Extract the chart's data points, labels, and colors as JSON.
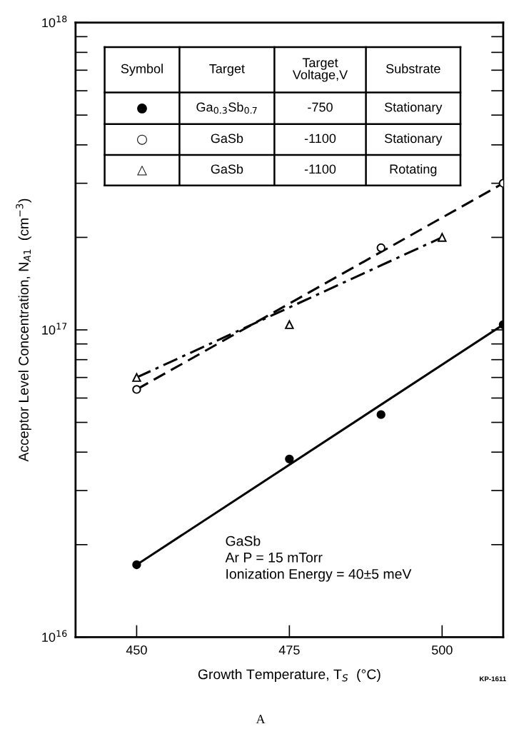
{
  "chart_data": {
    "type": "scatter",
    "xlabel": "Growth Temperature, T$_{S}$  (°C)",
    "ylabel": "Acceptor Level Concentration, N$_{A1}$  (cm$^{−3}$)",
    "log": "y",
    "xlim": [
      440,
      510
    ],
    "xticks": [
      450,
      475,
      500
    ],
    "ylim": [
      1e+16,
      1e+18
    ],
    "yticks": [
      {
        "value": 1e+16,
        "label": "10$^{16}$"
      },
      {
        "value": 1e+17,
        "label": "10$^{17}$"
      },
      {
        "value": 1e+18,
        "label": "10$^{18}$"
      }
    ],
    "series": [
      {
        "marker": "circle",
        "color": "#000000",
        "x": [
          450,
          475,
          490,
          510
        ],
        "values": [
          1.72e+16,
          3.8e+16,
          5.3e+16,
          1.04e+17
        ]
      },
      {
        "marker": "circle",
        "color": "#ffffff",
        "x": [
          450,
          490,
          510
        ],
        "values": [
          6.4e+16,
          1.85e+17,
          3e+17
        ]
      },
      {
        "marker": "triangle",
        "color": "#ffffff",
        "x": [
          450,
          475,
          500
        ],
        "values": [
          7e+16,
          1.04e+17,
          2e+17
        ]
      },
      {
        "type": "line",
        "line_style": "solid",
        "color": "#000000",
        "x": [
          450,
          510
        ],
        "values": [
          1.72e+16,
          1.04e+17
        ]
      },
      {
        "type": "line",
        "line_style": "dashed",
        "color": "#000000",
        "x": [
          450,
          510
        ],
        "values": [
          6.4e+16,
          3e+17
        ]
      },
      {
        "type": "line",
        "line_style": "dashdot",
        "color": "#000000",
        "x": [
          450,
          500
        ],
        "values": [
          7e+16,
          2e+17
        ]
      }
    ],
    "annotations": [
      "Symbol",
      "Target",
      "Target\nVoltage,V",
      "Substrate",
      "●",
      "Ga$_{0.3}$Sb$_{0.7}$",
      "-750",
      "Stationary",
      "○",
      "GaSb",
      "-1100",
      "Stationary",
      "△",
      "GaSb",
      "-1100",
      "Rotating",
      "GaSb\nAr P = 15 mTorr\nIonization Energy = 40±5 meV",
      "KP-1611",
      "A"
    ]
  }
}
